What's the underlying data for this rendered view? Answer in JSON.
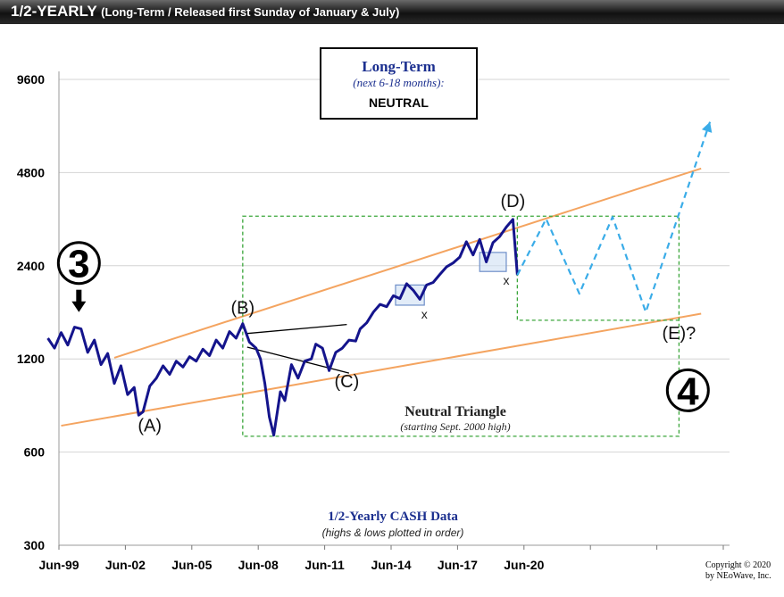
{
  "header": {
    "title": "1/2-YEARLY",
    "subtitle": "(Long-Term / Released first Sunday of January & July)"
  },
  "outlook": {
    "title": "Long-Term",
    "horizon": "(next 6-18 months):",
    "status": "NEUTRAL"
  },
  "copyright": {
    "line1": "Copyright © 2020",
    "line2": "by NEoWave, Inc."
  },
  "chart_data": {
    "type": "line",
    "title": "",
    "xlabel": "",
    "ylabel": "",
    "yscale": "log",
    "ylim": [
      300,
      12000
    ],
    "xlim": [
      1999.0,
      2030.5
    ],
    "y_ticks": [
      {
        "value": 300,
        "label": "300"
      },
      {
        "value": 600,
        "label": "600"
      },
      {
        "value": 1200,
        "label": "1200"
      },
      {
        "value": 2400,
        "label": "2400"
      },
      {
        "value": 4800,
        "label": "4800"
      },
      {
        "value": 9600,
        "label": "9600"
      }
    ],
    "x_ticks": [
      {
        "value": 1999.5,
        "label": "Jun-99"
      },
      {
        "value": 2002.5,
        "label": "Jun-02"
      },
      {
        "value": 2005.5,
        "label": "Jun-05"
      },
      {
        "value": 2008.5,
        "label": "Jun-08"
      },
      {
        "value": 2011.5,
        "label": "Jun-11"
      },
      {
        "value": 2014.5,
        "label": "Jun-14"
      },
      {
        "value": 2017.5,
        "label": "Jun-17"
      },
      {
        "value": 2020.5,
        "label": "Jun-20"
      },
      {
        "value": 2023.5,
        "label": ""
      },
      {
        "value": 2026.5,
        "label": ""
      },
      {
        "value": 2029.5,
        "label": ""
      }
    ],
    "grid": true,
    "series": [
      {
        "name": "1/2-Yearly CASH Data",
        "subtitle": "(highs & lows plotted in order)",
        "color": "#14148c",
        "points": [
          [
            1999.0,
            1400
          ],
          [
            1999.3,
            1300
          ],
          [
            1999.6,
            1460
          ],
          [
            1999.9,
            1330
          ],
          [
            2000.2,
            1520
          ],
          [
            2000.5,
            1500
          ],
          [
            2000.8,
            1260
          ],
          [
            2001.1,
            1380
          ],
          [
            2001.4,
            1150
          ],
          [
            2001.7,
            1250
          ],
          [
            2002.0,
            1000
          ],
          [
            2002.3,
            1140
          ],
          [
            2002.6,
            920
          ],
          [
            2002.9,
            970
          ],
          [
            2003.1,
            790
          ],
          [
            2003.3,
            810
          ],
          [
            2003.6,
            980
          ],
          [
            2003.9,
            1040
          ],
          [
            2004.2,
            1140
          ],
          [
            2004.5,
            1070
          ],
          [
            2004.8,
            1180
          ],
          [
            2005.1,
            1130
          ],
          [
            2005.4,
            1220
          ],
          [
            2005.7,
            1180
          ],
          [
            2006.0,
            1290
          ],
          [
            2006.3,
            1230
          ],
          [
            2006.6,
            1380
          ],
          [
            2006.9,
            1300
          ],
          [
            2007.2,
            1470
          ],
          [
            2007.5,
            1400
          ],
          [
            2007.8,
            1560
          ],
          [
            2008.1,
            1360
          ],
          [
            2008.4,
            1300
          ],
          [
            2008.6,
            1200
          ],
          [
            2008.8,
            1000
          ],
          [
            2009.0,
            780
          ],
          [
            2009.2,
            680
          ],
          [
            2009.5,
            940
          ],
          [
            2009.7,
            880
          ],
          [
            2010.0,
            1150
          ],
          [
            2010.3,
            1040
          ],
          [
            2010.6,
            1180
          ],
          [
            2010.9,
            1200
          ],
          [
            2011.1,
            1340
          ],
          [
            2011.4,
            1300
          ],
          [
            2011.7,
            1100
          ],
          [
            2012.0,
            1260
          ],
          [
            2012.3,
            1300
          ],
          [
            2012.6,
            1380
          ],
          [
            2012.9,
            1370
          ],
          [
            2013.1,
            1500
          ],
          [
            2013.4,
            1570
          ],
          [
            2013.7,
            1700
          ],
          [
            2014.0,
            1800
          ],
          [
            2014.3,
            1770
          ],
          [
            2014.6,
            1920
          ],
          [
            2014.9,
            1880
          ],
          [
            2015.2,
            2100
          ],
          [
            2015.5,
            2000
          ],
          [
            2015.8,
            1870
          ],
          [
            2016.1,
            2080
          ],
          [
            2016.4,
            2120
          ],
          [
            2016.7,
            2250
          ],
          [
            2017.0,
            2380
          ],
          [
            2017.3,
            2450
          ],
          [
            2017.6,
            2560
          ],
          [
            2017.9,
            2870
          ],
          [
            2018.2,
            2600
          ],
          [
            2018.5,
            2920
          ],
          [
            2018.8,
            2470
          ],
          [
            2019.1,
            2850
          ],
          [
            2019.4,
            2980
          ],
          [
            2019.7,
            3200
          ],
          [
            2020.0,
            3390
          ],
          [
            2020.2,
            2240
          ]
        ]
      },
      {
        "name": "projection",
        "color": "#3aace8",
        "dashed": true,
        "points": [
          [
            2020.2,
            2240
          ],
          [
            2021.5,
            3400
          ],
          [
            2023.0,
            1950
          ],
          [
            2024.5,
            3450
          ],
          [
            2026.0,
            1700
          ],
          [
            2028.9,
            7000
          ]
        ]
      }
    ],
    "trendlines": [
      {
        "from": [
          2002.0,
          1210
        ],
        "to": [
          2028.5,
          4950
        ],
        "color": "#f4a460"
      },
      {
        "from": [
          1999.6,
          730
        ],
        "to": [
          2028.5,
          1680
        ],
        "color": "#f4a460"
      }
    ],
    "triangle_lines": [
      {
        "from": [
          2008.0,
          1450
        ],
        "to": [
          2012.5,
          1550
        ]
      },
      {
        "from": [
          2008.0,
          1310
        ],
        "to": [
          2012.6,
          1080
        ]
      }
    ],
    "neutral_triangle": {
      "label": "Neutral Triangle",
      "note": "(starting Sept. 2000 high)",
      "rect": {
        "x": [
          2007.8,
          2027.5
        ],
        "y": [
          675,
          3470
        ]
      },
      "inner": {
        "x": [
          2020.2,
          2027.5
        ],
        "y": [
          1600,
          3470
        ]
      }
    },
    "x_boxes": [
      {
        "x": [
          2014.7,
          2016.0
        ],
        "y": [
          1790,
          2080
        ],
        "label": "x"
      },
      {
        "x": [
          2018.5,
          2019.7
        ],
        "y": [
          2300,
          2650
        ],
        "label": "x"
      }
    ],
    "wave_labels": [
      {
        "label": "(A)",
        "x": 2003.6,
        "y": 700
      },
      {
        "label": "(B)",
        "x": 2007.8,
        "y": 1680
      },
      {
        "label": "(C)",
        "x": 2012.5,
        "y": 970
      },
      {
        "label": "(D)",
        "x": 2020.0,
        "y": 3720
      },
      {
        "label": "(E)?",
        "x": 2027.5,
        "y": 1390
      }
    ],
    "degree_markers": [
      {
        "label": "3",
        "x": 2000.4,
        "y": 2450
      },
      {
        "label": "4",
        "x": 2027.9,
        "y": 950
      }
    ]
  }
}
